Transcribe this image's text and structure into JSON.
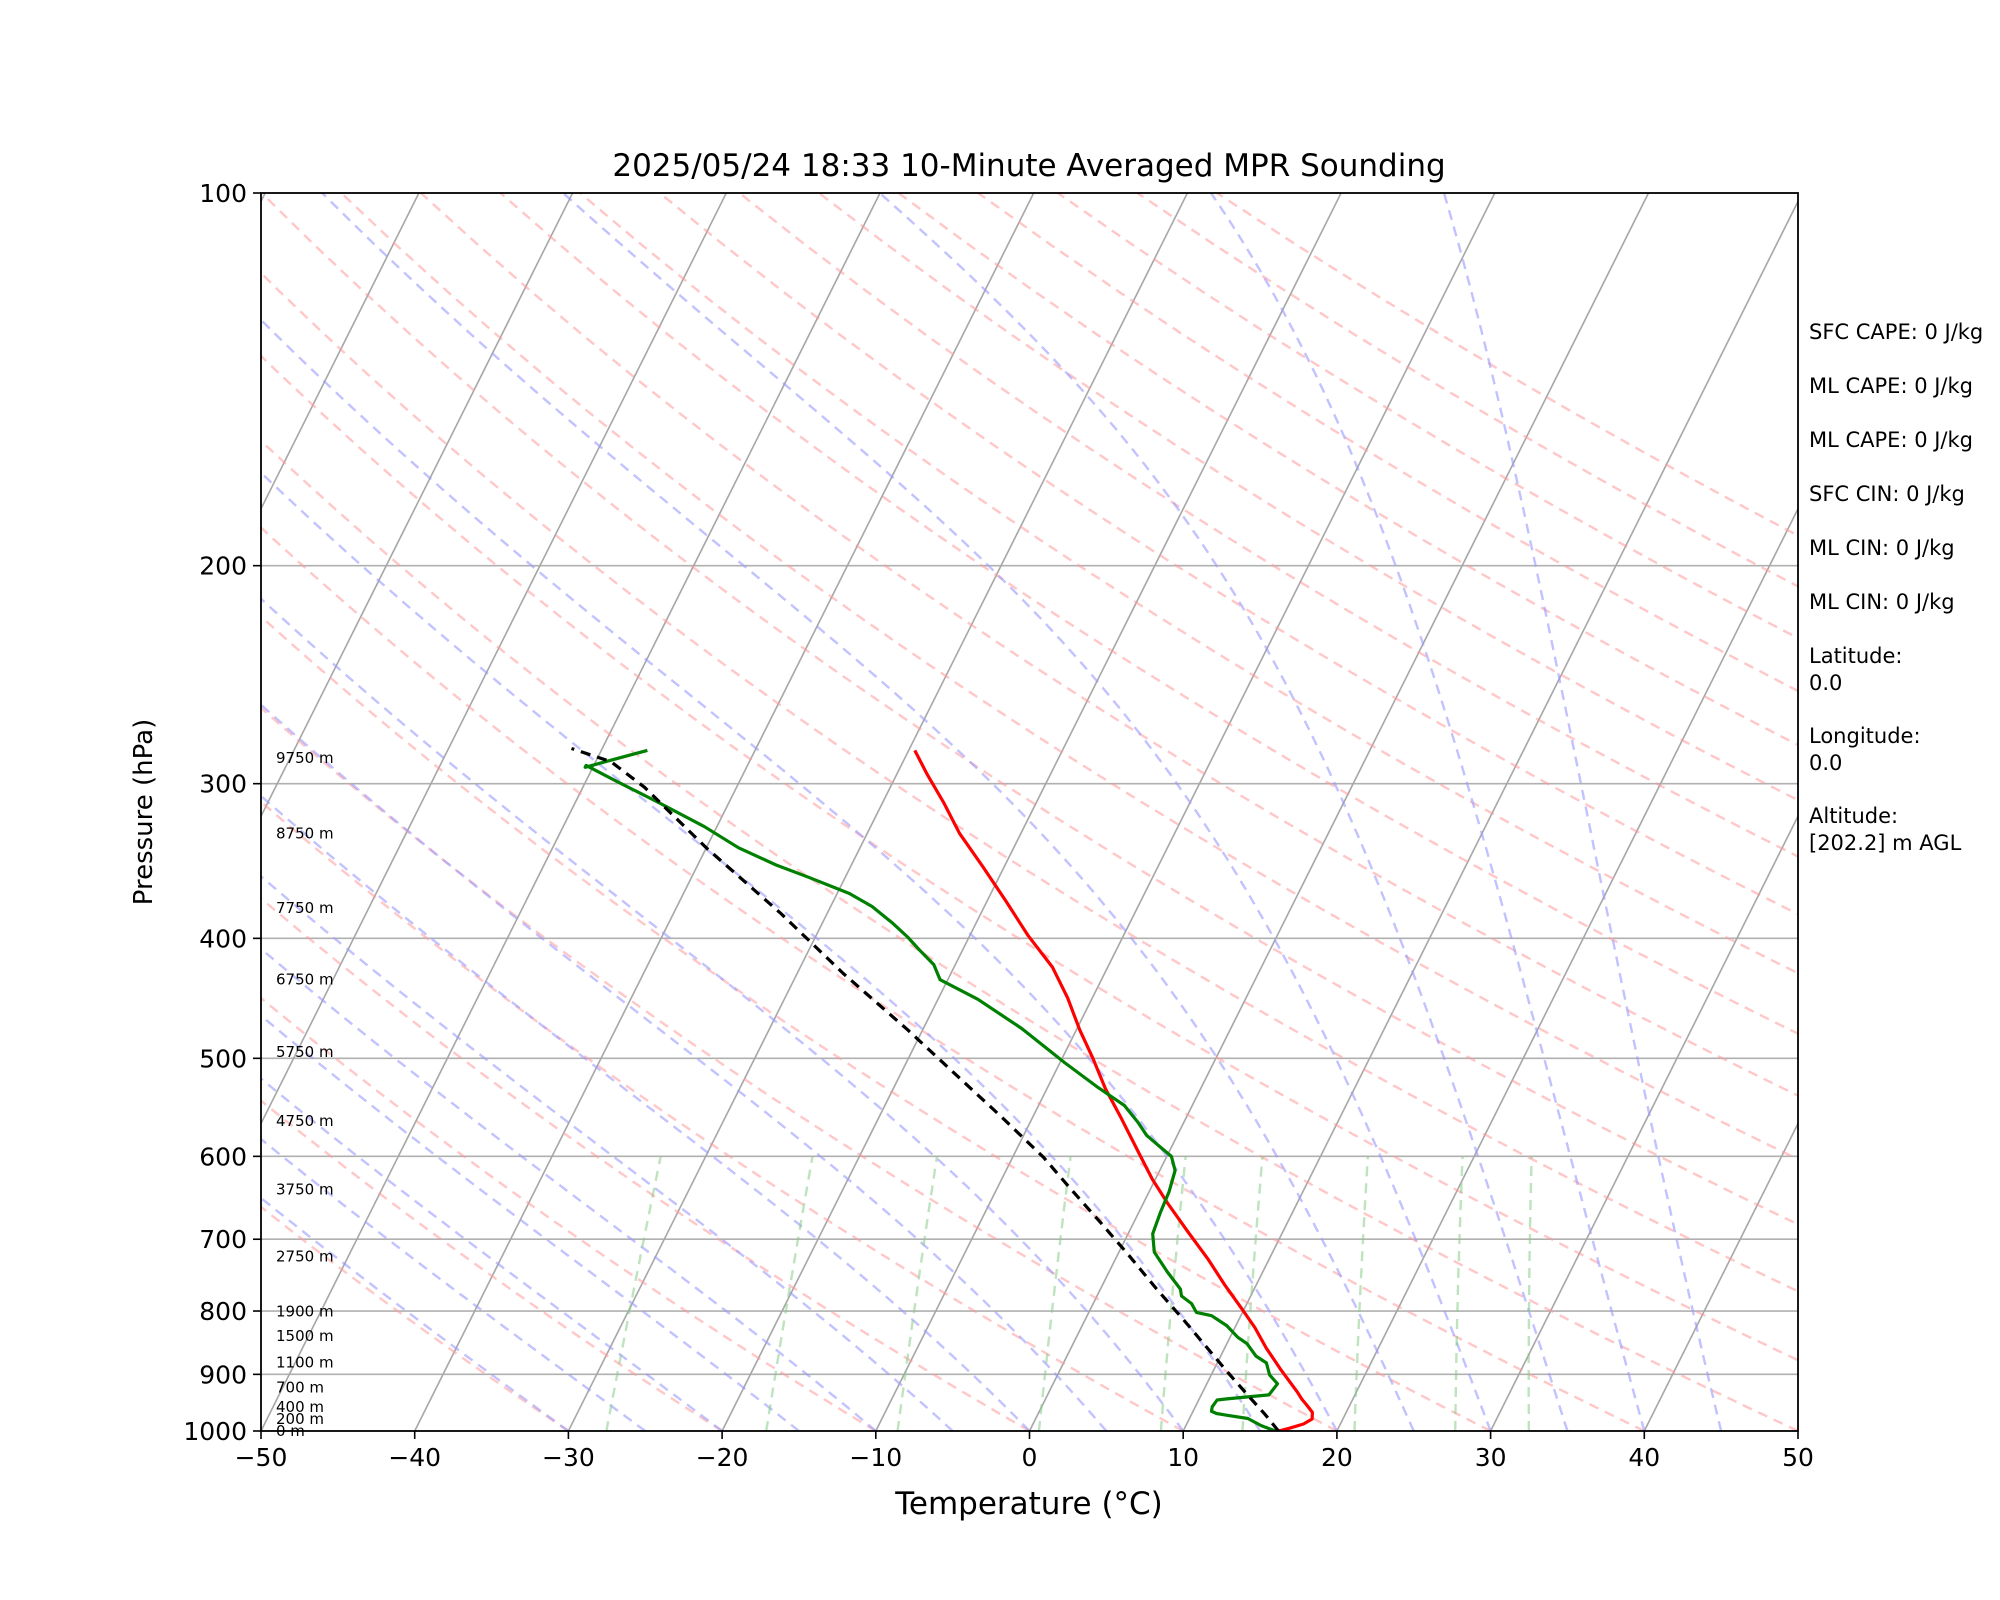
{
  "chart_data": {
    "type": "line",
    "chart_kind": "skew-t log-p",
    "title": "2025/05/24 18:33 10-Minute Averaged MPR Sounding",
    "xlabel": "Temperature (°C)",
    "ylabel": "Pressure (hPa)",
    "xlim": [
      -50,
      50
    ],
    "ylim": [
      1000,
      100
    ],
    "y_scale": "log",
    "x_ticks": [
      "−50",
      "−40",
      "−30",
      "−20",
      "−10",
      "0",
      "10",
      "20",
      "30",
      "40",
      "50"
    ],
    "y_ticks": [
      {
        "p": 100,
        "label": "100"
      },
      {
        "p": 200,
        "label": "200"
      },
      {
        "p": 300,
        "label": "300"
      },
      {
        "p": 400,
        "label": "400"
      },
      {
        "p": 500,
        "label": "500"
      },
      {
        "p": 600,
        "label": "600"
      },
      {
        "p": 700,
        "label": "700"
      },
      {
        "p": 800,
        "label": "800"
      },
      {
        "p": 900,
        "label": "900"
      },
      {
        "p": 1000,
        "label": "1000"
      }
    ],
    "grid": true,
    "height_labels": [
      {
        "p": 1000,
        "label": "0 m"
      },
      {
        "p": 978,
        "label": "200 m"
      },
      {
        "p": 956,
        "label": "400 m"
      },
      {
        "p": 922,
        "label": "700 m"
      },
      {
        "p": 880,
        "label": "1100 m"
      },
      {
        "p": 838,
        "label": "1500 m"
      },
      {
        "p": 801,
        "label": "1900 m"
      },
      {
        "p": 723,
        "label": "2750 m"
      },
      {
        "p": 638,
        "label": "3750 m"
      },
      {
        "p": 562,
        "label": "4750 m"
      },
      {
        "p": 494,
        "label": "5750 m"
      },
      {
        "p": 432,
        "label": "6750 m"
      },
      {
        "p": 378,
        "label": "7750 m"
      },
      {
        "p": 329,
        "label": "8750 m"
      },
      {
        "p": 286,
        "label": "9750 m"
      }
    ],
    "series": [
      {
        "kind": "temperature",
        "color": "#ff0000",
        "style": "solid",
        "points": [
          [
            16.2,
            1000
          ],
          [
            16.8,
            995
          ],
          [
            17.6,
            987
          ],
          [
            18.0,
            978
          ],
          [
            17.8,
            966
          ],
          [
            17.2,
            953
          ],
          [
            16.7,
            943
          ],
          [
            16.2,
            931
          ],
          [
            14.3,
            891
          ],
          [
            12.7,
            857
          ],
          [
            11.3,
            825
          ],
          [
            9.8,
            796
          ],
          [
            8.0,
            763
          ],
          [
            6.0,
            726
          ],
          [
            3.8,
            690
          ],
          [
            1.6,
            655
          ],
          [
            -0.2,
            626
          ],
          [
            -2.0,
            595
          ],
          [
            -4.2,
            559
          ],
          [
            -6.2,
            529
          ],
          [
            -8.0,
            500
          ],
          [
            -9.8,
            474
          ],
          [
            -11.6,
            447
          ],
          [
            -13.6,
            422
          ],
          [
            -16.2,
            398
          ],
          [
            -18.8,
            373
          ],
          [
            -21.4,
            350
          ],
          [
            -24.0,
            329
          ],
          [
            -26.0,
            311
          ],
          [
            -28.0,
            295
          ],
          [
            -29.6,
            282
          ]
        ]
      },
      {
        "kind": "dewpoint",
        "color": "#008000",
        "style": "solid",
        "points": [
          [
            16.0,
            1000
          ],
          [
            14.9,
            990
          ],
          [
            13.8,
            977
          ],
          [
            12.3,
            971
          ],
          [
            11.6,
            968
          ],
          [
            11.2,
            964
          ],
          [
            11.1,
            956
          ],
          [
            11.2,
            944
          ],
          [
            11.8,
            942
          ],
          [
            14.4,
            935
          ],
          [
            14.6,
            916
          ],
          [
            13.8,
            901
          ],
          [
            13.2,
            881
          ],
          [
            12.3,
            870
          ],
          [
            11.3,
            850
          ],
          [
            10.5,
            840
          ],
          [
            9.4,
            822
          ],
          [
            8.1,
            807
          ],
          [
            7.0,
            802
          ],
          [
            6.4,
            789
          ],
          [
            5.5,
            778
          ],
          [
            5.2,
            768
          ],
          [
            3.8,
            744
          ],
          [
            2.3,
            717
          ],
          [
            1.6,
            693
          ],
          [
            1.4,
            665
          ],
          [
            1.3,
            641
          ],
          [
            1.0,
            616
          ],
          [
            0.3,
            600
          ],
          [
            -0.8,
            589
          ],
          [
            -2.0,
            577
          ],
          [
            -3.0,
            563
          ],
          [
            -4.4,
            546
          ],
          [
            -6.7,
            528
          ],
          [
            -9.7,
            504
          ],
          [
            -13.6,
            473
          ],
          [
            -17.4,
            448
          ],
          [
            -20.5,
            432
          ],
          [
            -21.4,
            420
          ],
          [
            -22.9,
            408
          ],
          [
            -24.0,
            399
          ],
          [
            -25.4,
            389
          ],
          [
            -27.3,
            377
          ],
          [
            -29.2,
            368
          ],
          [
            -32.4,
            357
          ],
          [
            -34.9,
            349
          ],
          [
            -37.9,
            338
          ],
          [
            -40.8,
            325
          ],
          [
            -44.5,
            311
          ],
          [
            -47.9,
            299
          ],
          [
            -50.5,
            290
          ],
          [
            -50.5,
            291
          ],
          [
            -49.0,
            287
          ],
          [
            -47.0,
            282
          ]
        ]
      },
      {
        "kind": "parcel",
        "color": "#000000",
        "style": "dashed",
        "points": [
          [
            16.2,
            1000
          ],
          [
            14.8,
            970
          ],
          [
            12.8,
            931
          ],
          [
            10.8,
            893
          ],
          [
            8.6,
            852
          ],
          [
            6.4,
            813
          ],
          [
            3.6,
            767
          ],
          [
            0.6,
            719
          ],
          [
            -2.2,
            678
          ],
          [
            -5.0,
            640
          ],
          [
            -8.0,
            601
          ],
          [
            -12.0,
            558
          ],
          [
            -16.0,
            519
          ],
          [
            -21.0,
            474
          ],
          [
            -27.0,
            427
          ],
          [
            -33.0,
            382
          ],
          [
            -40.0,
            338
          ],
          [
            -46.0,
            302
          ],
          [
            -49.0,
            288
          ],
          [
            -52.0,
            281
          ]
        ]
      }
    ],
    "info": [
      {
        "label": "SFC CAPE: 0 J/kg"
      },
      {
        "label": "ML CAPE: 0 J/kg"
      },
      {
        "label": "ML CAPE: 0 J/kg"
      },
      {
        "label": "SFC CIN: 0 J/kg"
      },
      {
        "label": "ML CIN: 0 J/kg"
      },
      {
        "label": "ML CIN: 0 J/kg"
      },
      {
        "label": "Latitude:",
        "value": "0.0"
      },
      {
        "label": "Longitude:",
        "value": "0.0"
      },
      {
        "label": "Altitude:",
        "value": "[202.2] m AGL"
      }
    ],
    "colors": {
      "dry_adiabats": "#ff9999",
      "moist_adiabats": "#9999ff",
      "mixing_ratio": "#88cc88",
      "isotherms": "#a6a6a6"
    }
  }
}
